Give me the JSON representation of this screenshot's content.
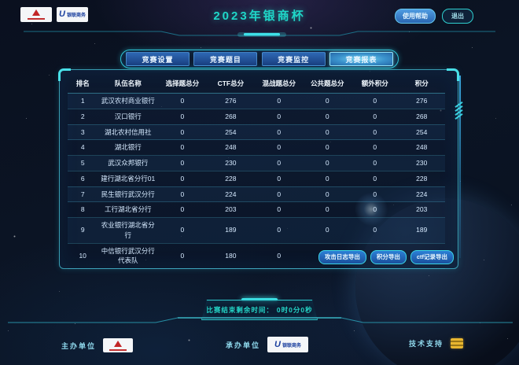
{
  "header": {
    "title": "2023年银商杯",
    "help_button": "使用帮助",
    "exit_button": "退出"
  },
  "tabs": [
    {
      "label": "竞赛设置",
      "active": false
    },
    {
      "label": "竞赛题目",
      "active": false
    },
    {
      "label": "竞赛监控",
      "active": false
    },
    {
      "label": "竞赛报表",
      "active": true
    }
  ],
  "table": {
    "columns": [
      "排名",
      "队伍名称",
      "选择题总分",
      "CTF总分",
      "混战题总分",
      "公共题总分",
      "额外积分",
      "积分"
    ],
    "rows": [
      [
        "1",
        "武汉农村商业银行",
        "0",
        "276",
        "0",
        "0",
        "0",
        "276"
      ],
      [
        "2",
        "汉口银行",
        "0",
        "268",
        "0",
        "0",
        "0",
        "268"
      ],
      [
        "3",
        "湖北农村信用社",
        "0",
        "254",
        "0",
        "0",
        "0",
        "254"
      ],
      [
        "4",
        "湖北银行",
        "0",
        "248",
        "0",
        "0",
        "0",
        "248"
      ],
      [
        "5",
        "武汉众邦银行",
        "0",
        "230",
        "0",
        "0",
        "0",
        "230"
      ],
      [
        "6",
        "建行湖北省分行01",
        "0",
        "228",
        "0",
        "0",
        "0",
        "228"
      ],
      [
        "7",
        "民生银行武汉分行",
        "0",
        "224",
        "0",
        "0",
        "0",
        "224"
      ],
      [
        "8",
        "工行湖北省分行",
        "0",
        "203",
        "0",
        "0",
        "0",
        "203"
      ],
      [
        "9",
        "农业银行湖北省分行",
        "0",
        "189",
        "0",
        "0",
        "0",
        "189"
      ],
      [
        "10",
        "中信银行武汉分行代表队",
        "0",
        "180",
        "0",
        "0",
        "0",
        "180"
      ]
    ]
  },
  "export_buttons": [
    "攻击日志导出",
    "积分导出",
    "ctf记录导出"
  ],
  "timer": {
    "label": "比赛结束剩余时间：",
    "value": "0时0分0秒"
  },
  "footer": {
    "host_label": "主办单位",
    "organizer_label": "承办单位",
    "support_label": "技术支持",
    "unionpay_text": "银联商务"
  },
  "colors": {
    "accent_teal": "#2fd0d0",
    "title_teal": "#1fd6c8",
    "tab_blue": "#2e68b4",
    "tab_active": "#79d8f2",
    "panel_border": "#48c8de",
    "button_blue": "#2c80d6"
  }
}
